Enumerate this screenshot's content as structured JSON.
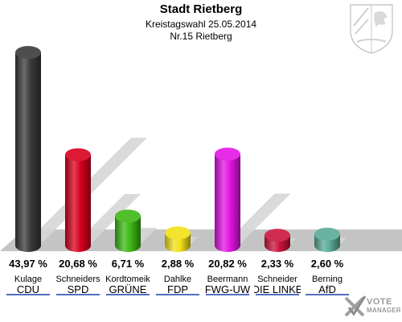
{
  "chart_data": {
    "type": "bar",
    "title": "Stadt Rietberg",
    "subtitle_lines": [
      "Kreistagswahl 25.05.2014",
      "Nr.15 Rietberg"
    ],
    "categories": [
      "CDU",
      "SPD",
      "GRÜNE",
      "FDP",
      "FWG-UW",
      "DIE LINKE",
      "AfD"
    ],
    "candidates": [
      "Kulage",
      "Schneiders",
      "Kordtomeik",
      "Dahlke",
      "Beermann",
      "Schneider",
      "Berning"
    ],
    "values": [
      43.97,
      20.68,
      6.71,
      2.88,
      20.82,
      2.33,
      2.6
    ],
    "value_labels": [
      "43,97 %",
      "20,68 %",
      "6,71 %",
      "2,88 %",
      "20,82 %",
      "2,33 %",
      "2,60 %"
    ],
    "colors": [
      "#3a3a3a",
      "#d8001e",
      "#3cb814",
      "#f2e018",
      "#e314e3",
      "#c8143c",
      "#5aaa96"
    ],
    "unit": "%",
    "ylim": [
      0,
      44
    ]
  },
  "branding": {
    "logo_line1": "VOTE",
    "logo_line2": "MANAGER",
    "logo_icon": "checkmark-ballot-icon",
    "crest_icon": "nrw-coat-of-arms-icon"
  }
}
